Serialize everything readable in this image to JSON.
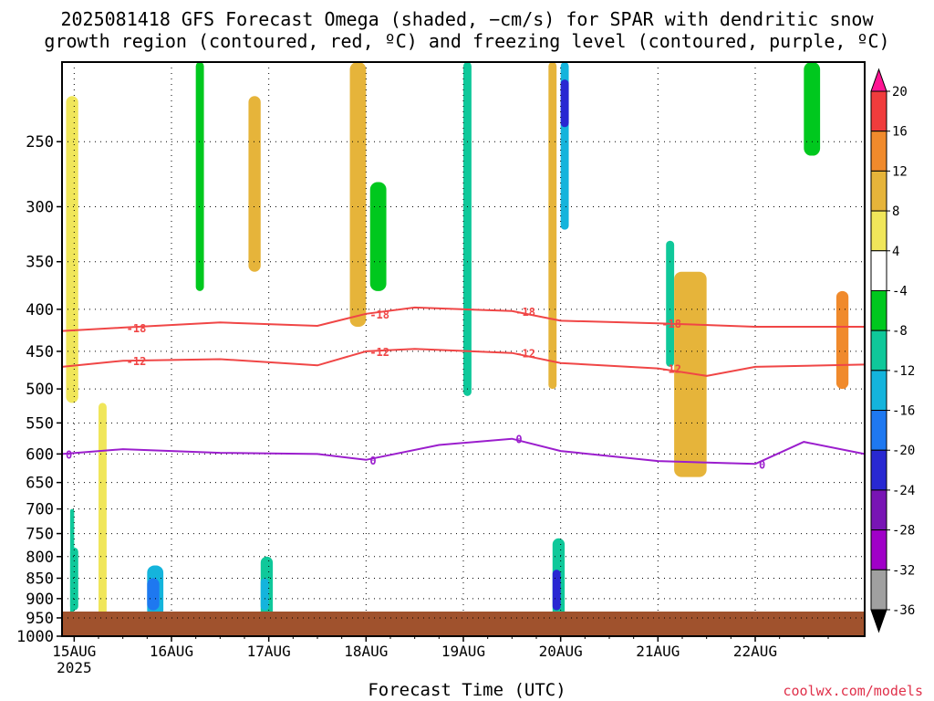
{
  "title_line1": "2025081418 GFS Forecast Omega (shaded, −cm/s) for SPAR with dendritic snow",
  "title_line2": "growth region (contoured, red, ºC) and freezing level (contoured, purple, ºC)",
  "xlabel": "Forecast Time (UTC)",
  "credit": "coolwx.com/models",
  "chart_data": {
    "type": "heatmap",
    "title": "2025081418 GFS Forecast Omega (shaded, −cm/s) for SPAR with dendritic snow growth region (contoured, red, ºC) and freezing level (contoured, purple, ºC)",
    "xlabel": "Forecast Time (UTC)",
    "ylabel": "",
    "y_axis": {
      "ticks": [
        250,
        300,
        350,
        400,
        450,
        500,
        550,
        600,
        650,
        700,
        750,
        800,
        850,
        900,
        950,
        1000
      ],
      "scale": "pressure",
      "ylim": [
        1000,
        200
      ]
    },
    "x_axis": {
      "ticks": [
        "15AUG",
        "16AUG",
        "17AUG",
        "18AUG",
        "19AUG",
        "20AUG",
        "21AUG",
        "22AUG"
      ],
      "year_label": "2025",
      "xlim_hours_from_15AUG": [
        -3,
        195
      ]
    },
    "colorbar": {
      "labels": [
        20,
        16,
        12,
        8,
        4,
        -4,
        -8,
        -12,
        -16,
        -20,
        -24,
        -28,
        -32,
        -36
      ],
      "colors": [
        "#ff1493",
        "#f03c3c",
        "#f08a2c",
        "#e6b43a",
        "#f0e65a",
        "#ffffff",
        "#00c81e",
        "#0fc89a",
        "#14b4dc",
        "#1e78f0",
        "#2828d2",
        "#7814b4",
        "#a000c8",
        "#a0a0a0",
        "#000000"
      ]
    },
    "contours": [
      {
        "name": "-18",
        "color": "#f04646",
        "value_c": -18,
        "points": [
          [
            -3,
            425
          ],
          [
            12,
            421
          ],
          [
            36,
            415
          ],
          [
            60,
            419
          ],
          [
            72,
            405
          ],
          [
            84,
            398
          ],
          [
            108,
            402
          ],
          [
            120,
            413
          ],
          [
            144,
            416
          ],
          [
            168,
            420
          ],
          [
            195,
            420
          ]
        ]
      },
      {
        "name": "-12",
        "color": "#f04646",
        "value_c": -12,
        "points": [
          [
            -3,
            470
          ],
          [
            12,
            462
          ],
          [
            36,
            460
          ],
          [
            60,
            468
          ],
          [
            72,
            450
          ],
          [
            84,
            447
          ],
          [
            108,
            452
          ],
          [
            120,
            465
          ],
          [
            144,
            472
          ],
          [
            156,
            482
          ],
          [
            168,
            470
          ],
          [
            195,
            467
          ]
        ]
      },
      {
        "name": "0",
        "color": "#9b1ecd",
        "value_c": 0,
        "points": [
          [
            -3,
            600
          ],
          [
            12,
            592
          ],
          [
            36,
            598
          ],
          [
            60,
            600
          ],
          [
            72,
            610
          ],
          [
            90,
            585
          ],
          [
            108,
            575
          ],
          [
            120,
            595
          ],
          [
            144,
            612
          ],
          [
            168,
            617
          ],
          [
            180,
            580
          ],
          [
            195,
            600
          ]
        ]
      }
    ],
    "omega_regions_cm_s": [
      {
        "x": [
          -2,
          1
        ],
        "p": [
          220,
          520
        ],
        "value": 6
      },
      {
        "x": [
          -1,
          0
        ],
        "p": [
          700,
          960
        ],
        "value": -10
      },
      {
        "x": [
          -1,
          1
        ],
        "p": [
          780,
          930
        ],
        "value": -12
      },
      {
        "x": [
          6,
          8
        ],
        "p": [
          520,
          950
        ],
        "value": 6
      },
      {
        "x": [
          18,
          22
        ],
        "p": [
          820,
          950
        ],
        "value": -14
      },
      {
        "x": [
          18,
          21
        ],
        "p": [
          850,
          930
        ],
        "value": -18
      },
      {
        "x": [
          30,
          32
        ],
        "p": [
          200,
          380
        ],
        "value": -8
      },
      {
        "x": [
          43,
          46
        ],
        "p": [
          220,
          360
        ],
        "value": 10
      },
      {
        "x": [
          46,
          49
        ],
        "p": [
          800,
          950
        ],
        "value": -12
      },
      {
        "x": [
          46,
          48
        ],
        "p": [
          850,
          930
        ],
        "value": -16
      },
      {
        "x": [
          68,
          72
        ],
        "p": [
          200,
          420
        ],
        "value": 8
      },
      {
        "x": [
          73,
          77
        ],
        "p": [
          280,
          380
        ],
        "value": -8
      },
      {
        "x": [
          96,
          98
        ],
        "p": [
          200,
          510
        ],
        "value": -10
      },
      {
        "x": [
          117,
          119
        ],
        "p": [
          200,
          500
        ],
        "value": 10
      },
      {
        "x": [
          118,
          121
        ],
        "p": [
          760,
          960
        ],
        "value": -12
      },
      {
        "x": [
          118,
          120
        ],
        "p": [
          830,
          930
        ],
        "value": -24
      },
      {
        "x": [
          120,
          122
        ],
        "p": [
          200,
          320
        ],
        "value": -16
      },
      {
        "x": [
          120,
          122
        ],
        "p": [
          210,
          240
        ],
        "value": -22
      },
      {
        "x": [
          146,
          148
        ],
        "p": [
          330,
          470
        ],
        "value": -12
      },
      {
        "x": [
          148,
          156
        ],
        "p": [
          360,
          640
        ],
        "value": 8
      },
      {
        "x": [
          180,
          184
        ],
        "p": [
          200,
          260
        ],
        "value": -8
      },
      {
        "x": [
          188,
          191
        ],
        "p": [
          380,
          500
        ],
        "value": 12
      }
    ]
  }
}
